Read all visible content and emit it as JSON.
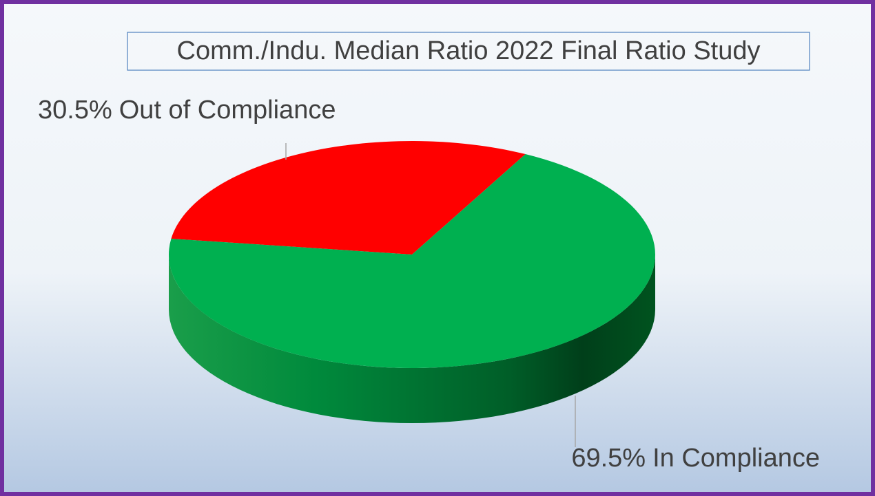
{
  "chart_data": {
    "type": "pie",
    "title": "Comm./Indu. Median Ratio 2022 Final Ratio Study",
    "categories": [
      "Out of Compliance",
      "In Compliance"
    ],
    "values": [
      30.5,
      69.5
    ],
    "value_labels": [
      "30.5%",
      "69.5%"
    ],
    "colors": [
      "#ff0000",
      "#00b050"
    ]
  }
}
